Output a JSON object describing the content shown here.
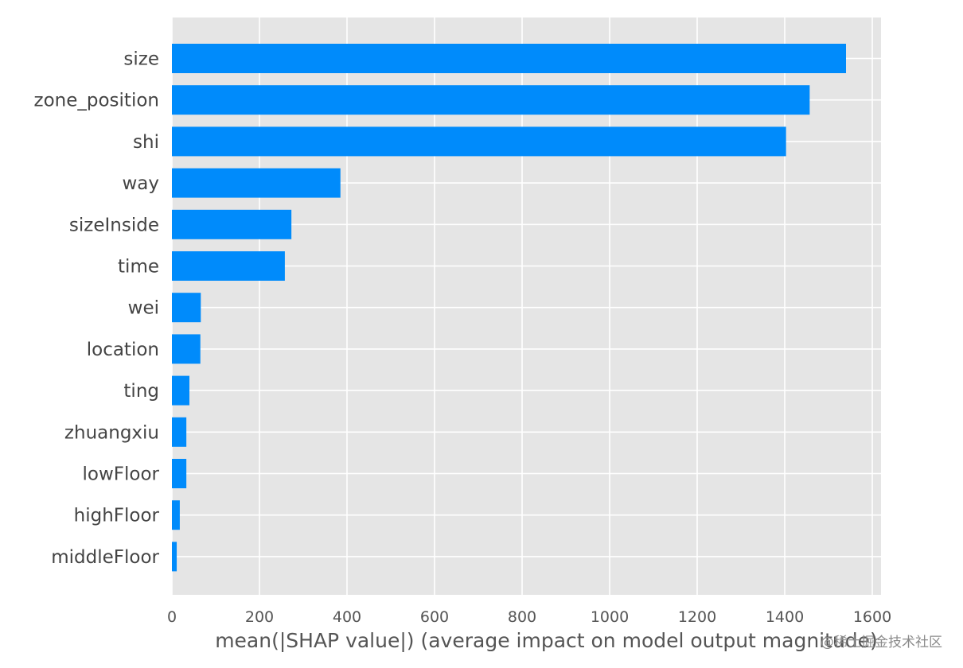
{
  "chart_data": {
    "type": "bar",
    "orientation": "horizontal",
    "categories": [
      "size",
      "zone_position",
      "shi",
      "way",
      "sizeInside",
      "time",
      "wei",
      "location",
      "ting",
      "zhuangxiu",
      "lowFloor",
      "highFloor",
      "middleFloor"
    ],
    "values": [
      1540,
      1457,
      1403,
      385,
      273,
      258,
      66,
      65,
      40,
      33,
      33,
      18,
      11
    ],
    "title": "",
    "xlabel": "mean(|SHAP value|) (average impact on model output magnitude)",
    "ylabel": "",
    "xlim": [
      0,
      1620
    ],
    "xticks": [
      0,
      200,
      400,
      600,
      800,
      1000,
      1200,
      1400,
      1600
    ],
    "grid": true,
    "bar_color": "#008bfb",
    "background_color": "#e5e5e5"
  },
  "watermark": "@稀土掘金技术社区"
}
